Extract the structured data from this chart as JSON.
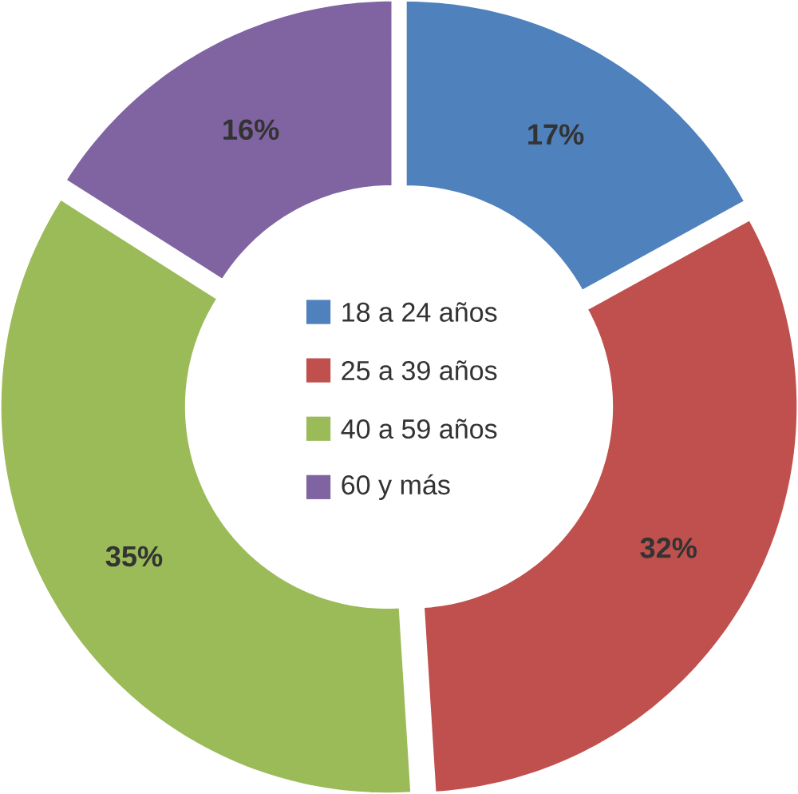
{
  "chart_data": {
    "type": "donut",
    "categories": [
      "18 a 24 años",
      "25 a 39 años",
      "40 a 59 años",
      "60 y más"
    ],
    "values": [
      17,
      32,
      35,
      16
    ],
    "colors": [
      "#4f81bd",
      "#c0504d",
      "#9bbb59",
      "#8064a2"
    ],
    "data_labels": true,
    "value_labels": [
      "17%",
      "32%",
      "35%",
      "16%"
    ],
    "legend": "center"
  }
}
